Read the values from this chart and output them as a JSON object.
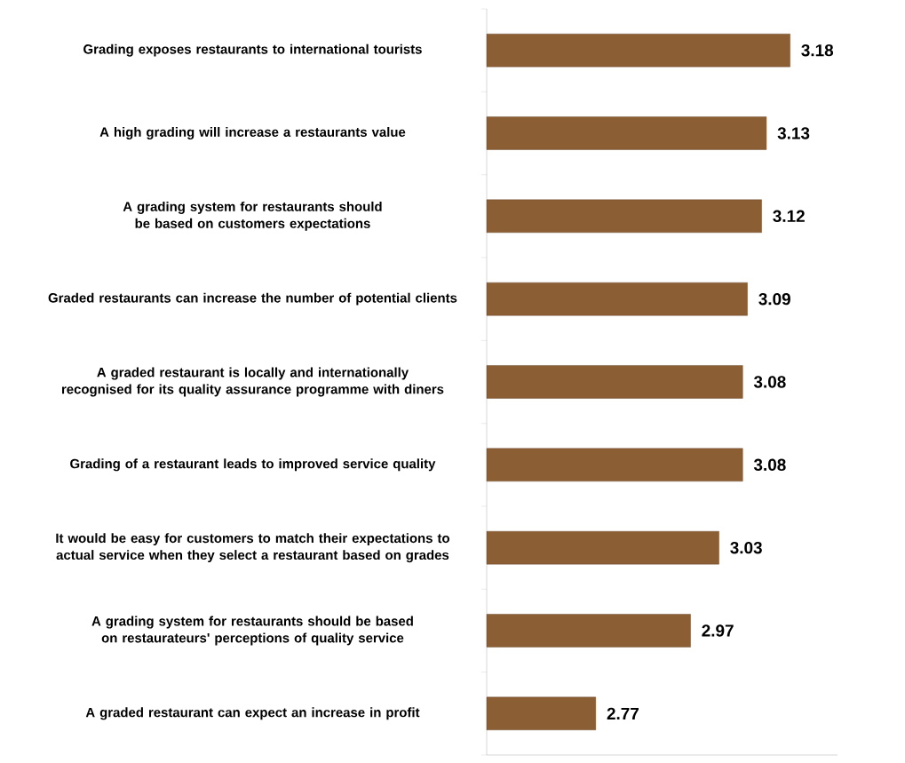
{
  "chart_data": {
    "type": "bar",
    "orientation": "horizontal",
    "categories": [
      "Grading exposes restaurants to international tourists",
      "A high grading will increase a restaurants value",
      "A grading system for restaurants should be based on customers expectations",
      "Graded restaurants can increase the number of potential clients",
      "A graded restaurant is locally and internationally recognised for its quality assurance programme with diners",
      "Grading of a restaurant leads to improved service quality",
      "It would be easy for customers to match their expectations to actual service when they select a restaurant based on grades",
      "A grading system for restaurants should be based on restaurateurs' perceptions of quality service",
      "A graded restaurant can expect an increase in profit"
    ],
    "values": [
      3.18,
      3.13,
      3.12,
      3.09,
      3.08,
      3.08,
      3.03,
      2.97,
      2.77
    ],
    "color": "#8b5e34",
    "xlim": [
      2.54,
      3.28
    ],
    "data_labels": true,
    "tick_labels": "y"
  }
}
